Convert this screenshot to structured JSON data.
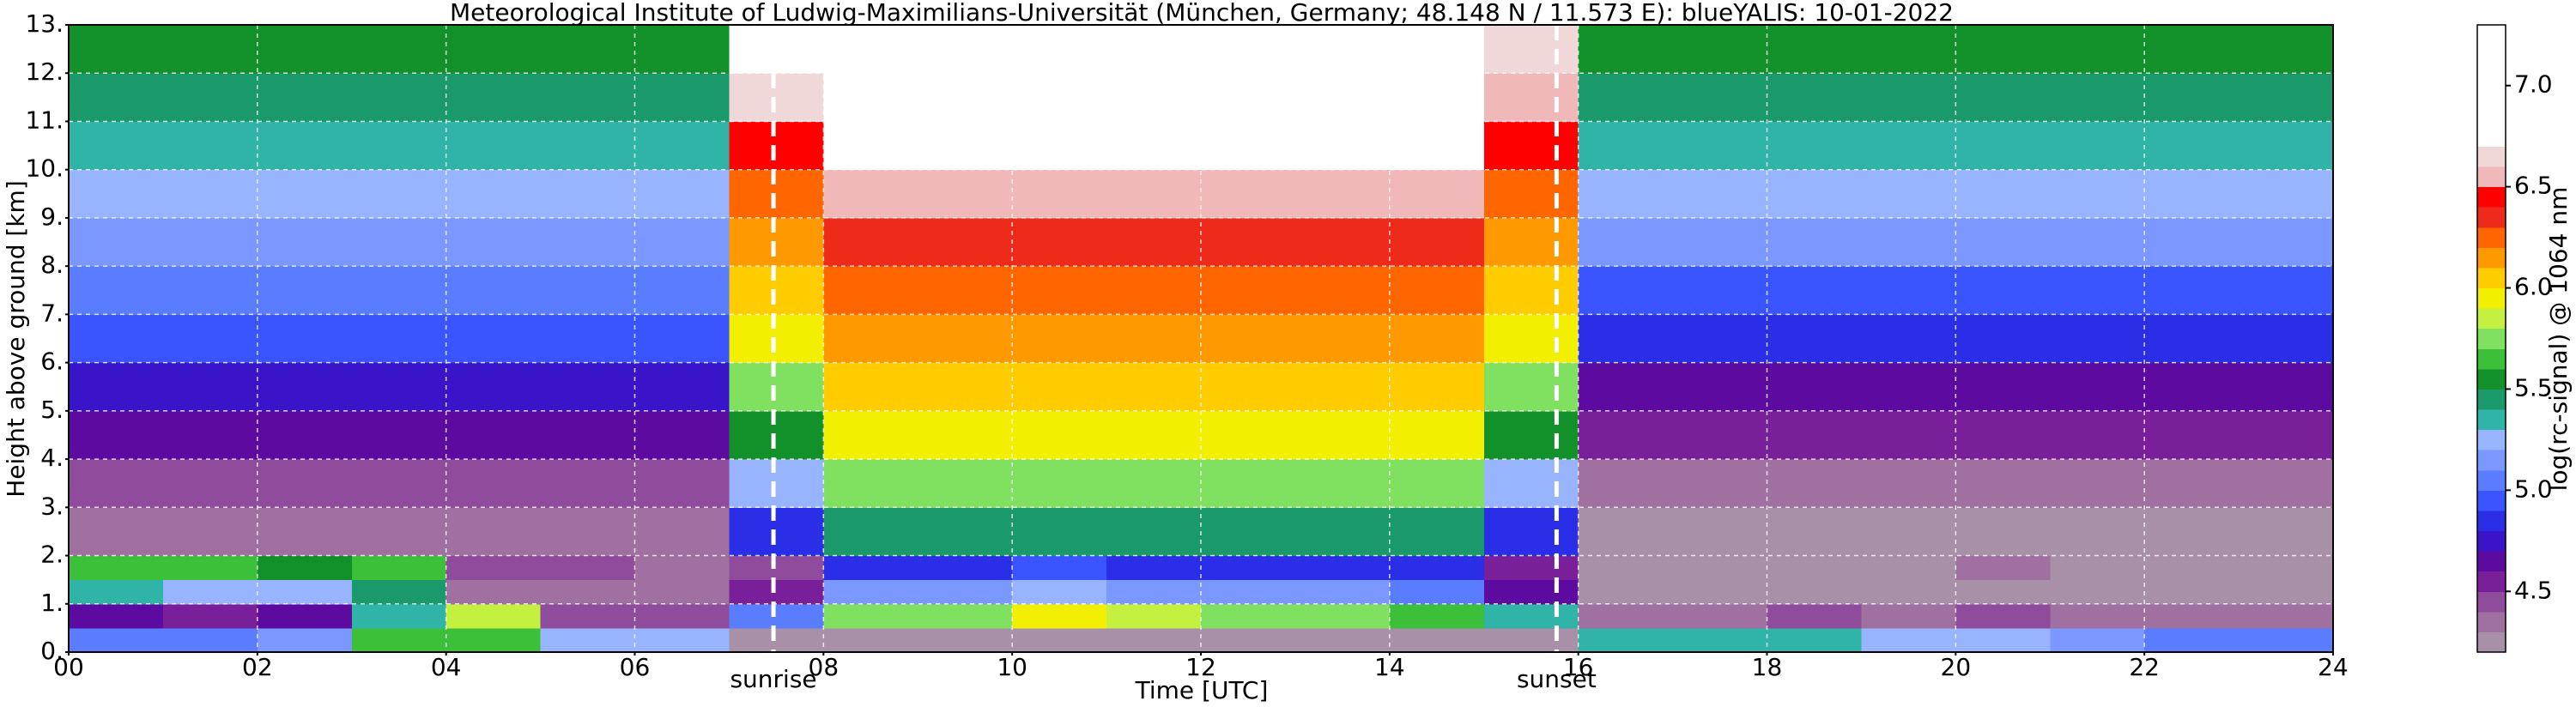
{
  "chart_data": {
    "type": "heatmap",
    "title": "Meteorological Institute of Ludwig-Maximilians-Universität (München, Germany; 48.148 N / 11.573 E):    blueYALIS: 10-01-2022",
    "xlabel": "Time [UTC]",
    "ylabel": "Height above ground [km]",
    "colorbar_label": "log(rc-signal) @ 1064 nm",
    "x_bins": [
      0,
      1,
      2,
      3,
      4,
      5,
      6,
      7,
      8,
      9,
      10,
      11,
      12,
      13,
      14,
      15,
      16,
      17,
      18,
      19,
      20,
      21,
      22,
      23,
      24
    ],
    "y_bins": [
      0,
      0.5,
      1,
      1.5,
      2,
      3,
      4,
      5,
      6,
      7,
      8,
      9,
      10,
      11,
      12,
      13
    ],
    "values": [
      [
        5.0,
        4.6,
        5.3,
        5.6,
        4.3,
        4.4,
        4.6,
        4.7,
        4.9,
        5.0,
        5.1,
        5.2,
        5.3,
        5.4,
        5.5
      ],
      [
        5.0,
        4.5,
        5.2,
        5.6,
        4.3,
        4.4,
        4.6,
        4.7,
        4.9,
        5.0,
        5.1,
        5.2,
        5.3,
        5.4,
        5.5
      ],
      [
        5.1,
        4.6,
        5.2,
        5.5,
        4.3,
        4.4,
        4.6,
        4.7,
        4.9,
        5.0,
        5.1,
        5.2,
        5.3,
        5.4,
        5.5
      ],
      [
        5.6,
        5.3,
        5.4,
        5.6,
        4.3,
        4.4,
        4.6,
        4.7,
        4.9,
        5.0,
        5.1,
        5.2,
        5.3,
        5.4,
        5.5
      ],
      [
        5.6,
        5.8,
        4.3,
        4.4,
        4.3,
        4.4,
        4.6,
        4.7,
        4.9,
        5.0,
        5.1,
        5.2,
        5.3,
        5.4,
        5.5
      ],
      [
        5.2,
        4.4,
        4.3,
        4.4,
        4.3,
        4.4,
        4.6,
        4.7,
        4.9,
        5.0,
        5.1,
        5.2,
        5.3,
        5.4,
        5.5
      ],
      [
        5.2,
        4.4,
        4.3,
        4.3,
        4.3,
        4.4,
        4.6,
        4.7,
        4.9,
        5.0,
        5.1,
        5.2,
        5.3,
        5.4,
        5.5
      ],
      [
        4.2,
        5.0,
        4.5,
        4.4,
        4.8,
        5.2,
        5.5,
        5.7,
        5.9,
        6.0,
        6.1,
        6.2,
        6.4,
        6.6,
        6.7
      ],
      [
        4.2,
        5.7,
        5.1,
        4.8,
        5.4,
        5.7,
        5.9,
        6.0,
        6.1,
        6.2,
        6.3,
        6.5,
        6.7,
        6.9,
        7.0
      ],
      [
        4.2,
        5.7,
        5.1,
        4.8,
        5.4,
        5.7,
        5.9,
        6.0,
        6.1,
        6.2,
        6.3,
        6.5,
        6.7,
        6.9,
        7.0
      ],
      [
        4.2,
        5.9,
        5.2,
        4.9,
        5.4,
        5.7,
        5.9,
        6.0,
        6.1,
        6.2,
        6.3,
        6.5,
        6.7,
        6.9,
        7.0
      ],
      [
        4.2,
        5.8,
        5.1,
        4.8,
        5.4,
        5.7,
        5.9,
        6.0,
        6.1,
        6.2,
        6.3,
        6.5,
        6.7,
        6.9,
        7.0
      ],
      [
        4.2,
        5.7,
        5.1,
        4.8,
        5.4,
        5.7,
        5.9,
        6.0,
        6.1,
        6.2,
        6.3,
        6.5,
        6.7,
        6.9,
        7.0
      ],
      [
        4.2,
        5.7,
        5.1,
        4.8,
        5.4,
        5.7,
        5.9,
        6.0,
        6.1,
        6.2,
        6.3,
        6.5,
        6.7,
        6.9,
        7.0
      ],
      [
        4.2,
        5.6,
        5.0,
        4.8,
        5.4,
        5.7,
        5.9,
        6.0,
        6.1,
        6.2,
        6.3,
        6.5,
        6.7,
        6.9,
        7.0
      ],
      [
        4.2,
        5.3,
        4.6,
        4.5,
        4.8,
        5.2,
        5.5,
        5.7,
        5.9,
        6.0,
        6.1,
        6.2,
        6.4,
        6.5,
        6.6
      ],
      [
        5.3,
        4.3,
        4.2,
        4.2,
        4.2,
        4.3,
        4.5,
        4.6,
        4.8,
        4.9,
        5.1,
        5.2,
        5.3,
        5.4,
        5.5
      ],
      [
        5.3,
        4.3,
        4.2,
        4.2,
        4.2,
        4.3,
        4.5,
        4.6,
        4.8,
        4.9,
        5.1,
        5.2,
        5.3,
        5.4,
        5.5
      ],
      [
        5.3,
        4.4,
        4.2,
        4.2,
        4.2,
        4.3,
        4.5,
        4.6,
        4.8,
        4.9,
        5.1,
        5.2,
        5.3,
        5.4,
        5.5
      ],
      [
        5.2,
        4.3,
        4.2,
        4.2,
        4.2,
        4.3,
        4.5,
        4.6,
        4.8,
        4.9,
        5.1,
        5.2,
        5.3,
        5.4,
        5.5
      ],
      [
        5.2,
        4.4,
        4.2,
        4.3,
        4.2,
        4.3,
        4.5,
        4.6,
        4.8,
        4.9,
        5.1,
        5.2,
        5.3,
        5.4,
        5.5
      ],
      [
        5.1,
        4.3,
        4.2,
        4.2,
        4.2,
        4.3,
        4.5,
        4.6,
        4.8,
        4.9,
        5.1,
        5.2,
        5.3,
        5.4,
        5.5
      ],
      [
        5.0,
        4.3,
        4.2,
        4.2,
        4.2,
        4.3,
        4.5,
        4.6,
        4.8,
        4.9,
        5.1,
        5.2,
        5.3,
        5.4,
        5.5
      ],
      [
        5.0,
        4.3,
        4.2,
        4.2,
        4.2,
        4.3,
        4.5,
        4.6,
        4.8,
        4.9,
        5.1,
        5.2,
        5.3,
        5.4,
        5.5
      ]
    ],
    "xlim": [
      0,
      24
    ],
    "xticks": [
      {
        "value": 0,
        "label": "00"
      },
      {
        "value": 2,
        "label": "02"
      },
      {
        "value": 4,
        "label": "04"
      },
      {
        "value": 6,
        "label": "06"
      },
      {
        "value": 8,
        "label": "08"
      },
      {
        "value": 10,
        "label": "10"
      },
      {
        "value": 12,
        "label": "12"
      },
      {
        "value": 14,
        "label": "14"
      },
      {
        "value": 16,
        "label": "16"
      },
      {
        "value": 18,
        "label": "18"
      },
      {
        "value": 20,
        "label": "20"
      },
      {
        "value": 22,
        "label": "22"
      },
      {
        "value": 24,
        "label": "24"
      }
    ],
    "ylim": [
      0,
      13
    ],
    "yticks": [
      {
        "value": 0,
        "label": "0."
      },
      {
        "value": 1,
        "label": "1."
      },
      {
        "value": 2,
        "label": "2."
      },
      {
        "value": 3,
        "label": "3."
      },
      {
        "value": 4,
        "label": "4."
      },
      {
        "value": 5,
        "label": "5."
      },
      {
        "value": 6,
        "label": "6."
      },
      {
        "value": 7,
        "label": "7."
      },
      {
        "value": 8,
        "label": "8."
      },
      {
        "value": 9,
        "label": "9."
      },
      {
        "value": 10,
        "label": "10."
      },
      {
        "value": 11,
        "label": "11."
      },
      {
        "value": 12,
        "label": "12."
      },
      {
        "value": 13,
        "label": "13."
      }
    ],
    "grid": true,
    "clim": [
      4.2,
      7.3
    ],
    "cticks": [
      4.5,
      {
        "value": 5.0,
        "label": "5.0"
      },
      5.5,
      {
        "value": 6.0,
        "label": "6.0"
      },
      6.5,
      {
        "value": 7.0,
        "label": "7.0"
      }
    ],
    "colors": [
      "#a890a8",
      "#a070a0",
      "#904c9c",
      "#7a1f9a",
      "#5c0aa0",
      "#3a14c8",
      "#2a2ee6",
      "#3a55ff",
      "#5a7cff",
      "#7a98ff",
      "#98b4ff",
      "#30b4a8",
      "#1a9a6a",
      "#12902a",
      "#3cc03a",
      "#80e060",
      "#c4f040",
      "#f2f000",
      "#ffcc00",
      "#ff9900",
      "#ff6600",
      "#ee2a1a",
      "#ff0000",
      "#f0b8b8",
      "#f0d8d8",
      "#ffffff",
      "#ffffff",
      "#ffffff",
      "#ffffff",
      "#ffffff",
      "#ffffff"
    ],
    "annotations": [
      {
        "text": "sunrise",
        "x": 7.47
      },
      {
        "text": "sunset",
        "x": 15.77
      }
    ]
  }
}
